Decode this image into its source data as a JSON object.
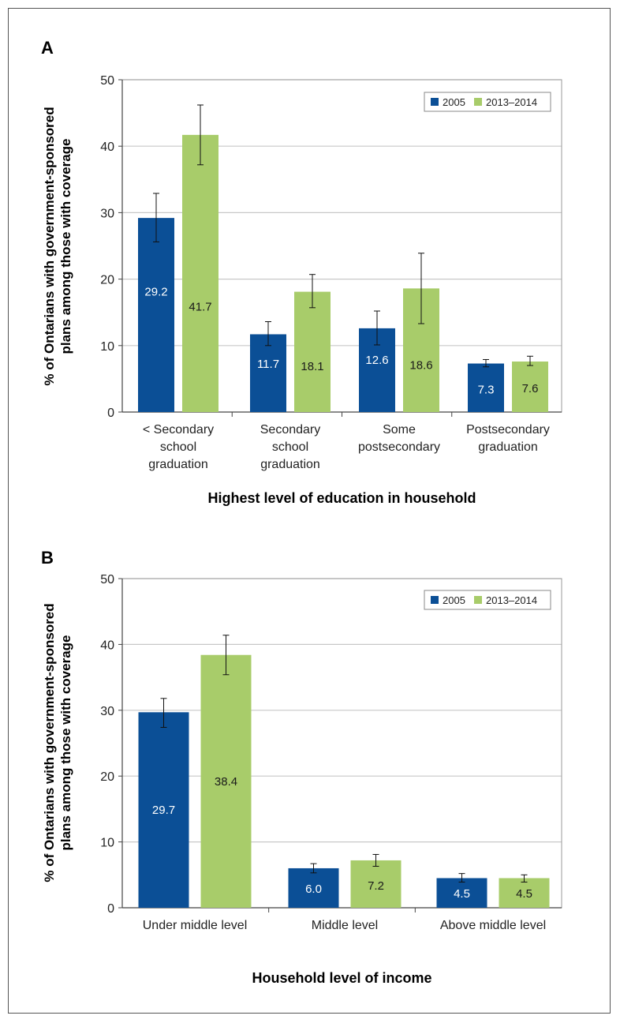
{
  "chart_data": [
    {
      "panel": "A",
      "type": "bar",
      "ylabel_line1": "% of Ontarians with government-sponsored",
      "ylabel_line2": "plans among those with coverage",
      "xlabel": "Highest level of education in household",
      "ylim": [
        0,
        50
      ],
      "yticks": [
        "0",
        "10",
        "20",
        "30",
        "40",
        "50"
      ],
      "categories": [
        [
          "< Secondary",
          "school",
          "graduation"
        ],
        [
          "Secondary",
          "school",
          "graduation"
        ],
        [
          "Some",
          "postsecondary"
        ],
        [
          "Postsecondary",
          "graduation"
        ]
      ],
      "series": [
        {
          "name": "2005",
          "color": "#0b4f96",
          "label_color": "#ffffff",
          "values": [
            29.2,
            11.7,
            12.6,
            7.3
          ],
          "labels": [
            "29.2",
            "11.7",
            "12.6",
            "7.3"
          ],
          "err_low": [
            25.6,
            10.0,
            10.1,
            6.8
          ],
          "err_high": [
            32.9,
            13.6,
            15.2,
            7.9
          ]
        },
        {
          "name": "2013–2014",
          "color": "#a8cc6a",
          "label_color": "#1a1a1a",
          "values": [
            41.7,
            18.1,
            18.6,
            7.6
          ],
          "labels": [
            "41.7",
            "18.1",
            "18.6",
            "7.6"
          ],
          "err_low": [
            37.2,
            15.7,
            13.3,
            7.0
          ],
          "err_high": [
            46.2,
            20.7,
            23.9,
            8.4
          ]
        }
      ],
      "grid": true,
      "legend_position": "top-right"
    },
    {
      "panel": "B",
      "type": "bar",
      "ylabel_line1": "% of Ontarians with government-sponsored",
      "ylabel_line2": "plans among those with coverage",
      "xlabel": "Household level of income",
      "ylim": [
        0,
        50
      ],
      "yticks": [
        "0",
        "10",
        "20",
        "30",
        "40",
        "50"
      ],
      "categories": [
        [
          "Under middle level"
        ],
        [
          "Middle level"
        ],
        [
          "Above middle level"
        ]
      ],
      "series": [
        {
          "name": "2005",
          "color": "#0b4f96",
          "label_color": "#ffffff",
          "values": [
            29.7,
            6.0,
            4.5
          ],
          "labels": [
            "29.7",
            "6.0",
            "4.5"
          ],
          "err_low": [
            27.4,
            5.3,
            3.9
          ],
          "err_high": [
            31.8,
            6.7,
            5.2
          ]
        },
        {
          "name": "2013–2014",
          "color": "#a8cc6a",
          "label_color": "#1a1a1a",
          "values": [
            38.4,
            7.2,
            4.5
          ],
          "labels": [
            "38.4",
            "7.2",
            "4.5"
          ],
          "err_low": [
            35.4,
            6.3,
            3.9
          ],
          "err_high": [
            41.4,
            8.1,
            5.0
          ]
        }
      ],
      "grid": true,
      "legend_position": "top-right"
    }
  ]
}
